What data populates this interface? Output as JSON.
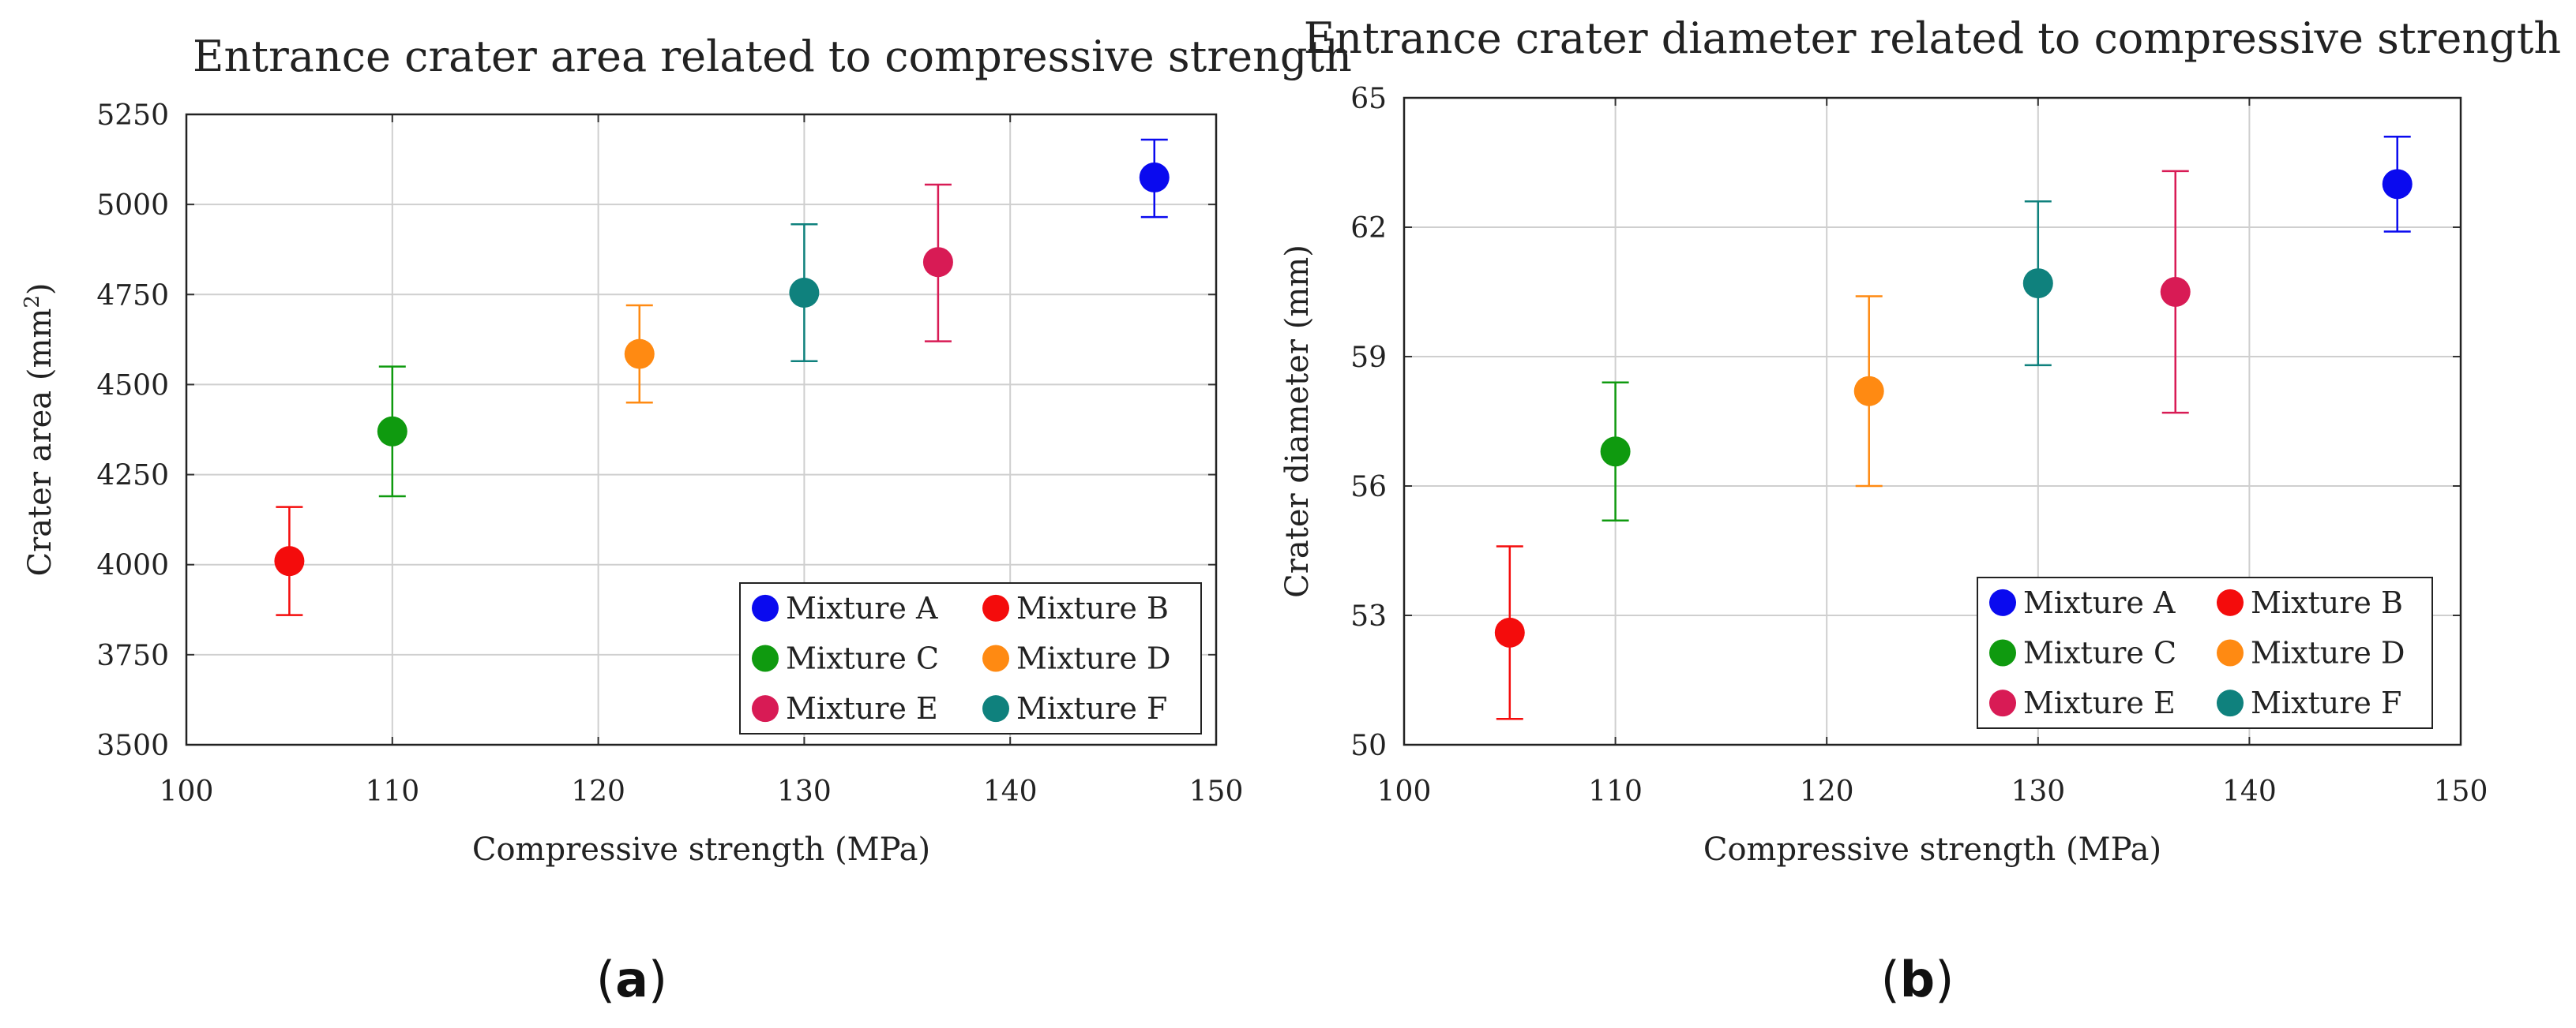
{
  "figure": {
    "colors": {
      "Mixture A": "#0a0aef",
      "Mixture B": "#f40c0c",
      "Mixture C": "#0f9a0f",
      "Mixture D": "#ff8a12",
      "Mixture E": "#d81b55",
      "Mixture F": "#0f817d"
    }
  },
  "chart_data": [
    {
      "type": "scatter",
      "title": "Entrance crater area related to compressive strength",
      "xlabel": "Compressive strength (MPa)",
      "ylabel_main": "Crater area (mm",
      "ylabel_sup": "2",
      "ylabel_tail": ")",
      "xlim": [
        100,
        150
      ],
      "ylim": [
        3500,
        5250
      ],
      "xticks": [
        100,
        110,
        120,
        130,
        140,
        150
      ],
      "yticks": [
        3500,
        3750,
        4000,
        4250,
        4500,
        4750,
        5000,
        5250
      ],
      "grid": true,
      "legend_position": "bottom-right",
      "panel_label": "a",
      "series": [
        {
          "name": "Mixture A",
          "x": 147,
          "y": 5075,
          "err_low": 4965,
          "err_high": 5180
        },
        {
          "name": "Mixture B",
          "x": 105,
          "y": 4010,
          "err_low": 3860,
          "err_high": 4160
        },
        {
          "name": "Mixture C",
          "x": 110,
          "y": 4370,
          "err_low": 4190,
          "err_high": 4550
        },
        {
          "name": "Mixture D",
          "x": 122,
          "y": 4585,
          "err_low": 4450,
          "err_high": 4720
        },
        {
          "name": "Mixture E",
          "x": 136.5,
          "y": 4840,
          "err_low": 4620,
          "err_high": 5055
        },
        {
          "name": "Mixture F",
          "x": 130,
          "y": 4755,
          "err_low": 4565,
          "err_high": 4945
        }
      ]
    },
    {
      "type": "scatter",
      "title": "Entrance crater diameter related to compressive strength",
      "xlabel": "Compressive strength (MPa)",
      "ylabel_main": "Crater diameter (mm)",
      "ylabel_sup": "",
      "ylabel_tail": "",
      "xlim": [
        100,
        150
      ],
      "ylim": [
        50,
        65
      ],
      "xticks": [
        100,
        110,
        120,
        130,
        140,
        150
      ],
      "yticks": [
        50,
        53,
        56,
        59,
        62,
        65
      ],
      "grid": true,
      "legend_position": "bottom-right",
      "panel_label": "b",
      "series": [
        {
          "name": "Mixture A",
          "x": 147,
          "y": 63.0,
          "err_low": 61.9,
          "err_high": 64.1
        },
        {
          "name": "Mixture B",
          "x": 105,
          "y": 52.6,
          "err_low": 50.6,
          "err_high": 54.6
        },
        {
          "name": "Mixture C",
          "x": 110,
          "y": 56.8,
          "err_low": 55.2,
          "err_high": 58.4
        },
        {
          "name": "Mixture D",
          "x": 122,
          "y": 58.2,
          "err_low": 56.0,
          "err_high": 60.4
        },
        {
          "name": "Mixture E",
          "x": 136.5,
          "y": 60.5,
          "err_low": 57.7,
          "err_high": 63.3
        },
        {
          "name": "Mixture F",
          "x": 130,
          "y": 60.7,
          "err_low": 58.8,
          "err_high": 62.6
        }
      ]
    }
  ]
}
